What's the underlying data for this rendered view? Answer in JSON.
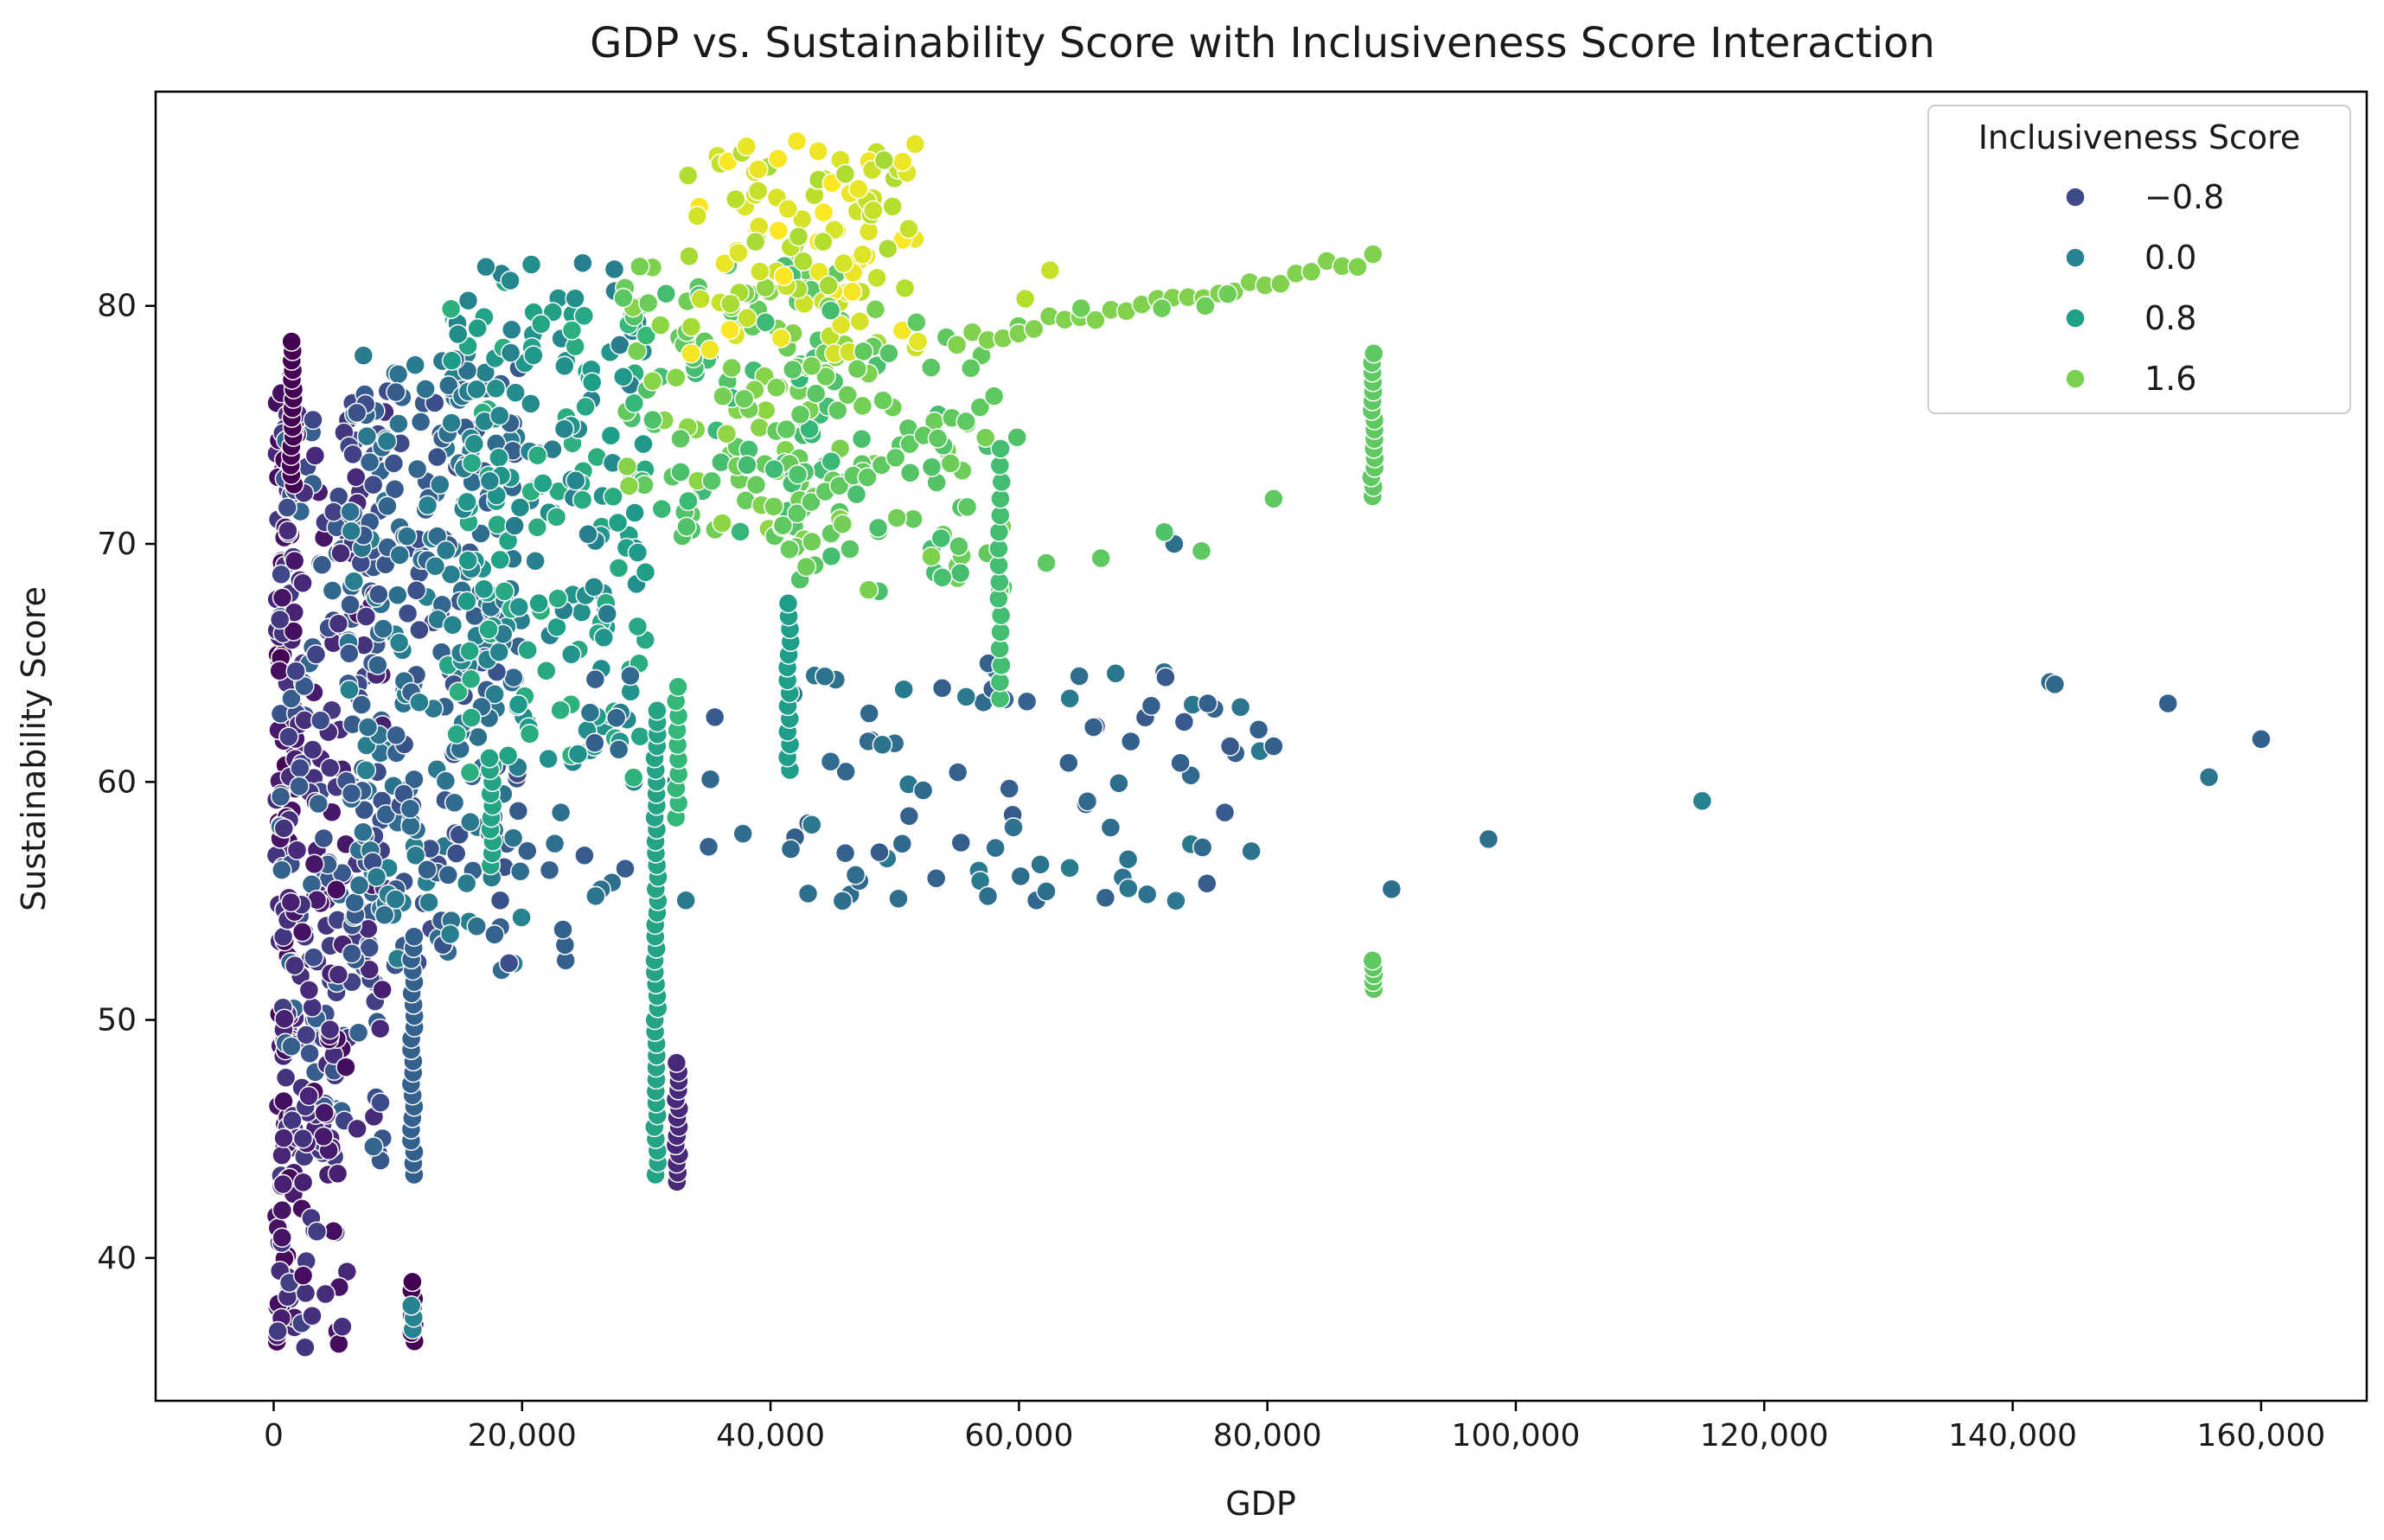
{
  "chart_data": {
    "type": "scatter",
    "title": "GDP vs. Sustainability Score with Inclusiveness Score Interaction",
    "xlabel": "GDP",
    "ylabel": "Sustainability Score",
    "xlim": [
      -9500,
      168500
    ],
    "ylim": [
      34,
      89
    ],
    "xticks": [
      0,
      20000,
      40000,
      60000,
      80000,
      100000,
      120000,
      140000,
      160000
    ],
    "xtick_labels": [
      "0",
      "20,000",
      "40,000",
      "60,000",
      "80,000",
      "100,000",
      "120,000",
      "140,000",
      "160,000"
    ],
    "yticks": [
      40,
      50,
      60,
      70,
      80
    ],
    "ytick_labels": [
      "40",
      "50",
      "60",
      "70",
      "80"
    ],
    "grid": false,
    "colormap": "viridis",
    "color_range": [
      -1.2,
      2.4
    ],
    "legend": {
      "title": "Inclusiveness Score",
      "placement": "top-right",
      "entries": [
        {
          "label": "−0.8",
          "value": -0.8,
          "color": "#3e4a89"
        },
        {
          "label": "0.0",
          "value": 0.0,
          "color": "#26828e"
        },
        {
          "label": "0.8",
          "value": 0.8,
          "color": "#1fa187"
        },
        {
          "label": "1.6",
          "value": 1.6,
          "color": "#7ad151"
        }
      ]
    },
    "clusters": [
      {
        "name": "low-gdp-dark",
        "x": [
          200,
          1800
        ],
        "y": [
          36,
          78
        ],
        "c": [
          -1.2,
          -0.6
        ],
        "n": 140
      },
      {
        "name": "low-gdp-mixed",
        "x": [
          500,
          9000
        ],
        "y": [
          44,
          76
        ],
        "c": [
          -1.0,
          0.0
        ],
        "n": 260
      },
      {
        "name": "low-gdp-lower",
        "x": [
          300,
          6000
        ],
        "y": [
          36,
          56
        ],
        "c": [
          -1.1,
          -0.5
        ],
        "n": 60
      },
      {
        "name": "mid-gdp-blue",
        "x": [
          6000,
          20000
        ],
        "y": [
          52,
          78
        ],
        "c": [
          -0.4,
          0.4
        ],
        "n": 300
      },
      {
        "name": "mid-gdp-teal",
        "x": [
          14000,
          30000
        ],
        "y": [
          60,
          82
        ],
        "c": [
          0.3,
          1.1
        ],
        "n": 220
      },
      {
        "name": "upper-green",
        "x": [
          28000,
          46000
        ],
        "y": [
          70,
          82
        ],
        "c": [
          1.2,
          1.8
        ],
        "n": 160
      },
      {
        "name": "top-yellow",
        "x": [
          33000,
          52000
        ],
        "y": [
          78,
          87
        ],
        "c": [
          1.9,
          2.4
        ],
        "n": 110
      },
      {
        "name": "green-band",
        "x": [
          40000,
          60000
        ],
        "y": [
          68,
          80
        ],
        "c": [
          1.3,
          1.7
        ],
        "n": 90
      },
      {
        "name": "scattered-blue",
        "x": [
          20000,
          80000
        ],
        "y": [
          55,
          65
        ],
        "c": [
          -0.2,
          0.3
        ],
        "n": 100
      }
    ],
    "vertical_series": [
      {
        "x": 1500,
        "y": [
          72.5,
          78.5
        ],
        "c": -1.2,
        "n": 16
      },
      {
        "x": 11200,
        "y": [
          43.5,
          53.5
        ],
        "c": -0.1,
        "n": 22
      },
      {
        "x": 11200,
        "y": [
          36.5,
          39
        ],
        "c": -1.2,
        "n": 8
      },
      {
        "x": 11200,
        "y": [
          37,
          38
        ],
        "c": 0.4,
        "n": 3
      },
      {
        "x": 17500,
        "y": [
          56.5,
          61
        ],
        "c": 0.9,
        "n": 10
      },
      {
        "x": 23400,
        "y": [
          52.5,
          53.8
        ],
        "c": -0.1,
        "n": 3
      },
      {
        "x": 30800,
        "y": [
          43.5,
          63
        ],
        "c": 0.9,
        "n": 40
      },
      {
        "x": 32500,
        "y": [
          43.2,
          48.2
        ],
        "c": -0.8,
        "n": 14
      },
      {
        "x": 32500,
        "y": [
          58.5,
          64
        ],
        "c": 1.2,
        "n": 10
      },
      {
        "x": 41500,
        "y": [
          60.5,
          67.5
        ],
        "c": 0.8,
        "n": 14
      },
      {
        "x": 58500,
        "y": [
          63.5,
          74
        ],
        "c": 1.3,
        "n": 16
      },
      {
        "x": 88500,
        "y": [
          72,
          78
        ],
        "c": 1.5,
        "n": 16
      },
      {
        "x": 88500,
        "y": [
          51.3,
          52.5
        ],
        "c": 1.5,
        "n": 5
      }
    ],
    "curves": [
      {
        "name": "right-green-arc",
        "x": [
          55000,
          88500
        ],
        "y_start": 78.5,
        "y_end": 82,
        "c": 1.7,
        "n": 28
      },
      {
        "name": "lower-green-line",
        "x": [
          41000,
          58000
        ],
        "y_start": 71,
        "y_end": 76,
        "c": 1.5,
        "n": 16
      }
    ],
    "points": [
      {
        "x": 143000,
        "y": 64.2,
        "c": 0.0
      },
      {
        "x": 143400,
        "y": 64.1,
        "c": 0.0
      },
      {
        "x": 152500,
        "y": 63.3,
        "c": -0.1
      },
      {
        "x": 155800,
        "y": 60.2,
        "c": 0.2
      },
      {
        "x": 160000,
        "y": 61.8,
        "c": -0.1
      },
      {
        "x": 115000,
        "y": 59.2,
        "c": 0.4
      },
      {
        "x": 97800,
        "y": 57.6,
        "c": 0.1
      },
      {
        "x": 90000,
        "y": 55.5,
        "c": 0.1
      },
      {
        "x": 80500,
        "y": 71.9,
        "c": 1.5
      },
      {
        "x": 72500,
        "y": 70.0,
        "c": 0.1
      },
      {
        "x": 71700,
        "y": 70.5,
        "c": 1.4
      },
      {
        "x": 74700,
        "y": 69.7,
        "c": 1.5
      },
      {
        "x": 66600,
        "y": 69.4,
        "c": 1.5
      },
      {
        "x": 62200,
        "y": 69.2,
        "c": 1.5
      },
      {
        "x": 79300,
        "y": 62.2,
        "c": -0.1
      },
      {
        "x": 80500,
        "y": 61.5,
        "c": -0.1
      },
      {
        "x": 77000,
        "y": 61.5,
        "c": -0.2
      },
      {
        "x": 75200,
        "y": 63.3,
        "c": -0.1
      },
      {
        "x": 71800,
        "y": 64.4,
        "c": -0.2
      },
      {
        "x": 73000,
        "y": 60.8,
        "c": -0.1
      },
      {
        "x": 69000,
        "y": 61.7,
        "c": -0.1
      },
      {
        "x": 66000,
        "y": 62.3,
        "c": -0.1
      },
      {
        "x": 64000,
        "y": 60.8,
        "c": -0.1
      },
      {
        "x": 57500,
        "y": 55.2,
        "c": 0.1
      },
      {
        "x": 62200,
        "y": 55.4,
        "c": 0.1
      },
      {
        "x": 50300,
        "y": 55.1,
        "c": 0.1
      },
      {
        "x": 45800,
        "y": 55.0,
        "c": 0.1
      },
      {
        "x": 65000,
        "y": 79.9,
        "c": 1.6
      },
      {
        "x": 71500,
        "y": 79.9,
        "c": 1.6
      },
      {
        "x": 75000,
        "y": 80.0,
        "c": 1.6
      },
      {
        "x": 76800,
        "y": 80.5,
        "c": 1.6
      },
      {
        "x": 62500,
        "y": 81.5,
        "c": 2.1
      },
      {
        "x": 60500,
        "y": 80.3,
        "c": 2.0
      }
    ]
  }
}
